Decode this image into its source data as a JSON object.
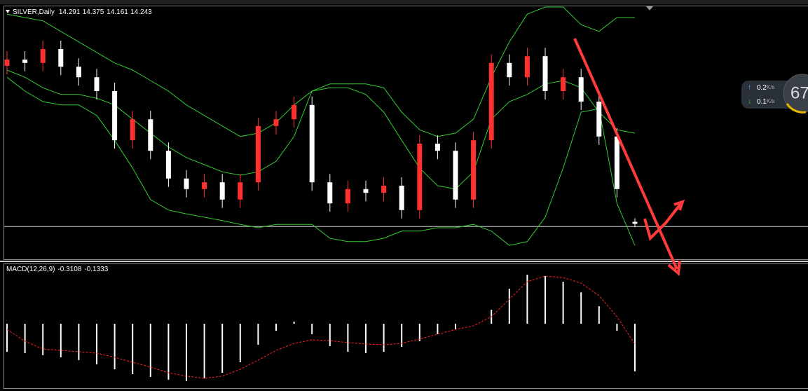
{
  "chart_data": {
    "type": "candlestick",
    "title": "SILVER,Daily",
    "ylim": [
      13.4,
      19.4
    ],
    "open": [
      18.0,
      18.15,
      18.07,
      18.4,
      17.98,
      17.73,
      17.4,
      16.23,
      16.73,
      15.98,
      15.32,
      15.07,
      15.23,
      14.82,
      15.23,
      16.57,
      16.73,
      17.07,
      15.23,
      14.73,
      15.07,
      14.98,
      15.15,
      14.57,
      16.15,
      15.98,
      14.82,
      16.23,
      18.07,
      17.73,
      18.23,
      17.4,
      17.73,
      17.15,
      16.32,
      14.291
    ],
    "high": [
      18.35,
      18.35,
      18.6,
      18.6,
      18.18,
      17.93,
      17.6,
      16.93,
      16.93,
      16.18,
      15.52,
      15.43,
      15.43,
      15.43,
      16.77,
      16.93,
      17.27,
      17.27,
      15.43,
      15.27,
      15.27,
      15.35,
      15.35,
      16.35,
      16.35,
      16.18,
      16.43,
      18.27,
      18.27,
      18.43,
      18.43,
      17.93,
      17.93,
      17.35,
      16.52,
      14.375
    ],
    "low": [
      17.8,
      17.87,
      17.87,
      17.78,
      17.53,
      17.2,
      16.03,
      16.03,
      15.78,
      15.12,
      14.87,
      14.87,
      14.62,
      14.62,
      15.03,
      16.37,
      16.53,
      15.03,
      14.53,
      14.53,
      14.78,
      14.78,
      14.37,
      14.37,
      15.78,
      14.62,
      14.62,
      16.03,
      17.53,
      17.53,
      17.2,
      17.2,
      16.95,
      16.12,
      14.87,
      14.161
    ],
    "close": [
      18.15,
      18.07,
      18.4,
      17.98,
      17.73,
      17.4,
      16.23,
      16.73,
      15.98,
      15.32,
      15.07,
      15.23,
      14.82,
      15.23,
      16.57,
      16.73,
      17.07,
      15.23,
      14.73,
      15.07,
      14.98,
      15.15,
      14.57,
      16.15,
      15.98,
      14.82,
      16.23,
      18.07,
      17.73,
      18.23,
      17.4,
      17.73,
      17.15,
      16.32,
      15.07,
      14.243
    ],
    "up_color": "#ff3030",
    "down_color": "#ffffff",
    "bands": {
      "color": "#33cc33",
      "upper": [
        19.23,
        19.15,
        19.07,
        18.82,
        18.57,
        18.32,
        18.07,
        17.9,
        17.65,
        17.4,
        17.07,
        16.82,
        16.57,
        16.32,
        16.4,
        16.65,
        17.07,
        17.4,
        17.57,
        17.57,
        17.57,
        17.48,
        16.9,
        16.48,
        16.32,
        16.4,
        16.73,
        17.73,
        18.57,
        19.23,
        19.4,
        19.4,
        18.98,
        18.82,
        19.15,
        19.15
      ],
      "middle": [
        17.9,
        17.73,
        17.48,
        17.32,
        17.32,
        17.23,
        17.07,
        16.73,
        16.4,
        16.07,
        15.82,
        15.65,
        15.48,
        15.4,
        15.48,
        15.73,
        16.32,
        17.4,
        17.48,
        17.48,
        17.32,
        16.9,
        16.23,
        15.57,
        15.15,
        15.07,
        15.48,
        16.73,
        17.15,
        17.32,
        17.57,
        17.65,
        17.48,
        16.9,
        16.48,
        16.4
      ],
      "lower": [
        17.73,
        17.4,
        17.15,
        17.07,
        17.07,
        16.82,
        16.23,
        15.57,
        14.82,
        14.57,
        14.48,
        14.4,
        14.32,
        14.23,
        14.15,
        14.23,
        14.23,
        14.23,
        13.9,
        13.82,
        13.82,
        13.9,
        14.07,
        14.07,
        14.15,
        14.15,
        14.23,
        14.07,
        13.73,
        13.82,
        14.4,
        15.57,
        16.9,
        16.98,
        14.73,
        13.73
      ]
    },
    "level": 14.18,
    "macd": {
      "label": "MACD(12,26,9)",
      "ylim": [
        -0.425,
        0.384
      ],
      "histogram": [
        -0.183,
        -0.192,
        -0.205,
        -0.219,
        -0.237,
        -0.265,
        -0.297,
        -0.329,
        -0.347,
        -0.365,
        -0.374,
        -0.356,
        -0.32,
        -0.251,
        -0.137,
        -0.046,
        0.014,
        -0.068,
        -0.146,
        -0.183,
        -0.192,
        -0.183,
        -0.151,
        -0.114,
        -0.068,
        -0.037,
        0,
        0.091,
        0.228,
        0.32,
        0.311,
        0.274,
        0.205,
        0.114,
        -0.046,
        -0.3108
      ],
      "signal": [
        -0.037,
        -0.114,
        -0.164,
        -0.174,
        -0.183,
        -0.192,
        -0.219,
        -0.251,
        -0.283,
        -0.32,
        -0.342,
        -0.356,
        -0.342,
        -0.297,
        -0.237,
        -0.174,
        -0.128,
        -0.105,
        -0.11,
        -0.123,
        -0.132,
        -0.137,
        -0.128,
        -0.1,
        -0.068,
        -0.037,
        -0.014,
        0.046,
        0.16,
        0.274,
        0.311,
        0.301,
        0.265,
        0.183,
        0.046,
        -0.1333
      ],
      "histogram_color": "#ffffff",
      "signal_color": "#ff2020"
    }
  },
  "widget": {
    "upload": 0.2,
    "download": 0.1,
    "unit": "K/s",
    "percent": 67
  }
}
